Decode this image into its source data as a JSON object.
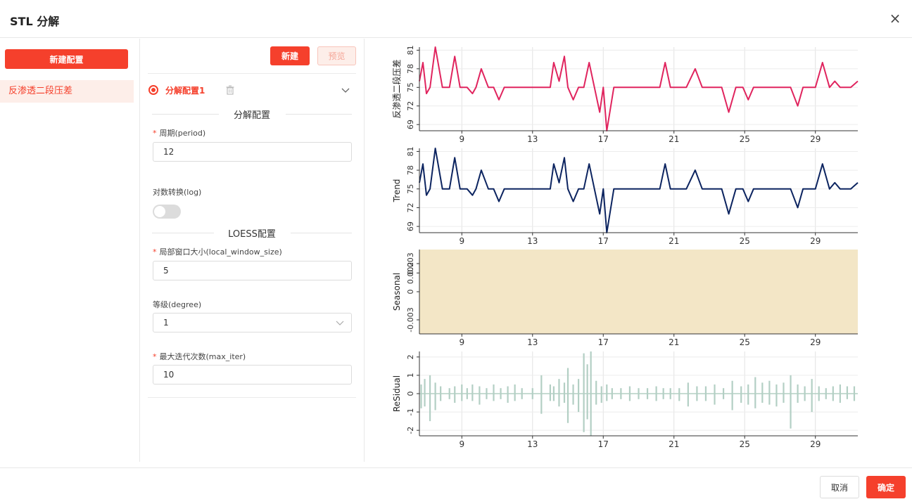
{
  "dialog": {
    "title": "STL 分解",
    "close_icon": "close-icon"
  },
  "sidebar": {
    "new_config_label": "新建配置",
    "items": [
      {
        "label": "反渗透二段压差"
      }
    ]
  },
  "config": {
    "new_label": "新建",
    "preview_label": "预览",
    "item_name": "分解配置1",
    "section_decomp": "分解配置",
    "period_label": "周期(period)",
    "period_value": "12",
    "log_label": "对数转换(log)",
    "log_enabled": false,
    "section_loess": "LOESS配置",
    "window_label": "局部窗口大小(local_window_size)",
    "window_value": "5",
    "degree_label": "等级(degree)",
    "degree_value": "1",
    "maxiter_label": "最大迭代次数(max_iter)",
    "maxiter_value": "10"
  },
  "footer": {
    "cancel_label": "取消",
    "ok_label": "确定"
  },
  "colors": {
    "accent": "#f5402c",
    "observed": "#e0245e",
    "trend": "#0c2460",
    "seasonal_fill": "#f3e6c6",
    "residual": "#b3cfc4"
  },
  "chart_data": [
    {
      "type": "line",
      "ylabel": "反渗透二段压差",
      "xticks": [
        9,
        13,
        17,
        21,
        25,
        29
      ],
      "xlim": [
        6.6,
        31.4
      ],
      "yticks": [
        69,
        72,
        75,
        78,
        81
      ],
      "yticklabels": [
        "69",
        "72",
        "75",
        "78",
        "81"
      ],
      "ylim": [
        68,
        81.5
      ],
      "series": [
        {
          "color": "#e0245e",
          "x": [
            6.6,
            6.8,
            7.0,
            7.2,
            7.5,
            7.9,
            8.3,
            8.6,
            8.9,
            9.3,
            9.6,
            9.8,
            10.1,
            10.5,
            10.8,
            11.1,
            11.4,
            11.8,
            12.2,
            12.6,
            13.0,
            13.5,
            14.0,
            14.2,
            14.5,
            14.8,
            15.0,
            15.3,
            15.6,
            15.9,
            16.2,
            16.5,
            16.8,
            17.0,
            17.2,
            17.6,
            18.0,
            18.6,
            18.9,
            19.3,
            19.8,
            20.2,
            20.5,
            20.8,
            21.2,
            21.7,
            22.2,
            22.6,
            22.9,
            23.3,
            23.7,
            24.1,
            24.5,
            24.9,
            25.2,
            25.5,
            25.8,
            26.1,
            26.4,
            26.8,
            27.2,
            27.6,
            28.0,
            28.3,
            28.6,
            29.0,
            29.4,
            29.8,
            30.1,
            30.4,
            30.7,
            31.0,
            31.4
          ],
          "y": [
            76,
            79,
            74,
            75,
            81.5,
            75,
            75,
            80,
            75,
            75,
            74,
            75,
            78,
            75,
            75,
            73,
            75,
            75,
            75,
            75,
            75,
            75,
            75,
            79,
            76,
            80,
            75,
            73,
            75,
            75,
            79,
            75,
            71,
            75,
            68,
            75,
            75,
            75,
            75,
            75,
            75,
            75,
            79,
            75,
            75,
            75,
            78,
            75,
            75,
            75,
            75,
            71,
            75,
            75,
            73,
            75,
            75,
            75,
            75,
            75,
            75,
            75,
            72,
            75,
            75,
            75,
            79,
            75,
            76,
            75,
            75,
            75,
            76
          ]
        }
      ]
    },
    {
      "type": "line",
      "ylabel": "Trend",
      "xticks": [
        9,
        13,
        17,
        21,
        25,
        29
      ],
      "xlim": [
        6.6,
        31.4
      ],
      "yticks": [
        69,
        72,
        75,
        78,
        81
      ],
      "yticklabels": [
        "69",
        "72",
        "75",
        "78",
        "81"
      ],
      "ylim": [
        68,
        81.5
      ],
      "series": [
        {
          "color": "#0c2460",
          "x": [
            6.6,
            6.8,
            7.0,
            7.2,
            7.5,
            7.9,
            8.3,
            8.6,
            8.9,
            9.3,
            9.6,
            9.8,
            10.1,
            10.5,
            10.8,
            11.1,
            11.4,
            11.8,
            12.2,
            12.6,
            13.0,
            13.5,
            14.0,
            14.2,
            14.5,
            14.8,
            15.0,
            15.3,
            15.6,
            15.9,
            16.2,
            16.5,
            16.8,
            17.0,
            17.2,
            17.6,
            18.0,
            18.6,
            18.9,
            19.3,
            19.8,
            20.2,
            20.5,
            20.8,
            21.2,
            21.7,
            22.2,
            22.6,
            22.9,
            23.3,
            23.7,
            24.1,
            24.5,
            24.9,
            25.2,
            25.5,
            25.8,
            26.1,
            26.4,
            26.8,
            27.2,
            27.6,
            28.0,
            28.3,
            28.6,
            29.0,
            29.4,
            29.8,
            30.1,
            30.4,
            30.7,
            31.0,
            31.4
          ],
          "y": [
            76,
            79,
            74,
            75,
            81.5,
            75,
            75,
            80,
            75,
            75,
            74,
            75,
            78,
            75,
            75,
            73,
            75,
            75,
            75,
            75,
            75,
            75,
            75,
            79,
            76,
            80,
            75,
            73,
            75,
            75,
            79,
            75,
            71,
            75,
            68,
            75,
            75,
            75,
            75,
            75,
            75,
            75,
            79,
            75,
            75,
            75,
            78,
            75,
            75,
            75,
            75,
            71,
            75,
            75,
            73,
            75,
            75,
            75,
            75,
            75,
            75,
            75,
            72,
            75,
            75,
            75,
            79,
            75,
            76,
            75,
            75,
            75,
            76
          ]
        }
      ]
    },
    {
      "type": "area",
      "ylabel": "Seasonal",
      "xticks": [
        9,
        13,
        17,
        21,
        25,
        29
      ],
      "xlim": [
        6.6,
        31.4
      ],
      "yticks": [
        -0.004,
        -0.003,
        0,
        0.002,
        0.003
      ],
      "yticklabels": [
        "",
        "-0.003",
        "0",
        "0.002",
        "0.003"
      ],
      "ylim": [
        -0.0045,
        0.0045
      ],
      "series": [
        {
          "color": "#f3e6c6",
          "fill_lower": -0.0045,
          "fill_upper": 0.0045
        }
      ]
    },
    {
      "type": "line",
      "ylabel": "ReSidual",
      "xticks": [
        9,
        13,
        17,
        21,
        25,
        29
      ],
      "xlim": [
        6.6,
        31.4
      ],
      "yticks": [
        -2,
        -1,
        0,
        1,
        2
      ],
      "yticklabels": [
        "-2",
        "-1",
        "0",
        "1",
        "2"
      ],
      "ylim": [
        -2.3,
        2.3
      ],
      "series": [
        {
          "color": "#b3cfc4",
          "spikes_x": [
            6.7,
            6.9,
            7.2,
            7.5,
            7.8,
            8.3,
            8.6,
            9.0,
            9.3,
            9.6,
            10.0,
            10.4,
            10.8,
            11.2,
            11.6,
            12.0,
            12.4,
            13.0,
            13.5,
            14.0,
            14.2,
            14.5,
            14.8,
            15.0,
            15.3,
            15.6,
            15.9,
            16.1,
            16.3,
            16.6,
            16.9,
            17.2,
            17.5,
            18.0,
            18.5,
            19.0,
            19.5,
            20.0,
            20.4,
            20.8,
            21.3,
            21.8,
            22.3,
            22.8,
            23.3,
            23.8,
            24.3,
            24.8,
            25.2,
            25.6,
            26.0,
            26.4,
            26.8,
            27.2,
            27.6,
            28.0,
            28.4,
            28.8,
            29.2,
            29.6,
            30.0,
            30.4,
            30.8,
            31.2
          ],
          "spikes_hi": [
            0.5,
            0.8,
            1.0,
            0.6,
            0.4,
            0.3,
            0.4,
            0.5,
            0.3,
            0.5,
            0.4,
            0.3,
            0.5,
            0.3,
            0.4,
            0.5,
            0.3,
            0.3,
            1.0,
            0.5,
            0.4,
            0.8,
            0.6,
            1.4,
            0.5,
            0.8,
            2.2,
            1.6,
            2.3,
            0.7,
            0.4,
            0.5,
            0.3,
            0.3,
            0.4,
            0.3,
            0.3,
            0.4,
            0.3,
            0.3,
            0.3,
            0.6,
            0.4,
            0.4,
            0.5,
            0.3,
            0.7,
            0.4,
            0.5,
            0.9,
            0.6,
            0.7,
            0.5,
            0.6,
            1.0,
            0.5,
            0.4,
            0.8,
            0.4,
            0.3,
            0.4,
            0.5,
            0.4,
            0.4
          ],
          "spikes_lo": [
            -0.8,
            -0.7,
            -1.5,
            -0.9,
            -0.4,
            -0.3,
            -0.5,
            -0.4,
            -0.3,
            -0.4,
            -0.6,
            -0.3,
            -0.4,
            -0.3,
            -0.5,
            -0.4,
            -0.3,
            -0.3,
            -1.1,
            -0.4,
            -0.4,
            -0.7,
            -0.5,
            -1.6,
            -0.6,
            -1.0,
            -2.1,
            -1.4,
            -2.3,
            -0.6,
            -0.5,
            -0.4,
            -0.3,
            -0.3,
            -0.4,
            -0.3,
            -0.3,
            -0.4,
            -0.3,
            -0.3,
            -0.4,
            -0.7,
            -0.4,
            -0.4,
            -0.6,
            -0.3,
            -0.9,
            -0.5,
            -0.6,
            -0.8,
            -0.5,
            -0.6,
            -0.7,
            -0.5,
            -1.9,
            -0.5,
            -0.4,
            -1.0,
            -0.4,
            -0.3,
            -0.4,
            -0.5,
            -0.3,
            -0.4
          ]
        }
      ]
    }
  ]
}
